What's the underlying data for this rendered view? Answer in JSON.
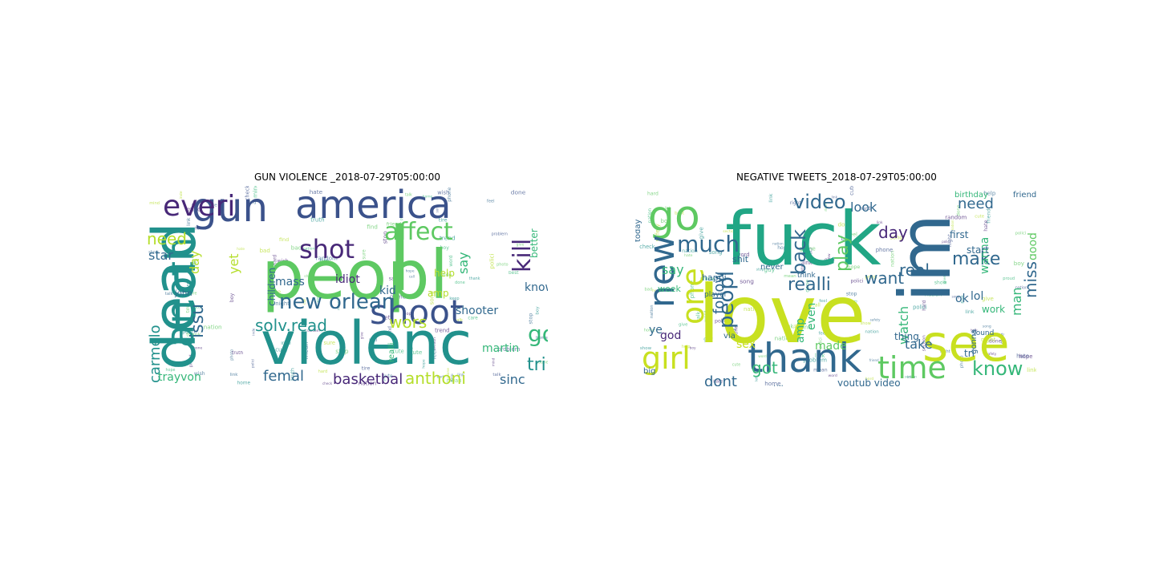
{
  "chart_data": [
    {
      "type": "wordcloud",
      "title": "GUN VIOLENCE _2018-07-29T05:00:00",
      "words": [
        {
          "text": "peopl",
          "weight": 1.0,
          "color": "#5ec962"
        },
        {
          "text": "dead",
          "weight": 0.88,
          "color": "#21918c"
        },
        {
          "text": "violenc",
          "weight": 0.86,
          "color": "#21918c"
        },
        {
          "text": "gun",
          "weight": 0.7,
          "color": "#3b528b"
        },
        {
          "text": "america",
          "weight": 0.66,
          "color": "#3b528b"
        },
        {
          "text": "anoth",
          "weight": 0.62,
          "color": "#21918c"
        },
        {
          "text": "l",
          "weight": 0.9,
          "color": "#5ec962"
        },
        {
          "text": "shoot",
          "weight": 0.55,
          "color": "#3b528b"
        },
        {
          "text": "everi",
          "weight": 0.5,
          "color": "#482878"
        },
        {
          "text": "shot",
          "weight": 0.42,
          "color": "#482878"
        },
        {
          "text": "affect",
          "weight": 0.4,
          "color": "#5ec962"
        },
        {
          "text": "kill",
          "weight": 0.38,
          "color": "#482878"
        },
        {
          "text": "new orlean",
          "weight": 0.35,
          "color": "#31688e"
        },
        {
          "text": "need",
          "weight": 0.28,
          "color": "#b5de2b"
        },
        {
          "text": "issu",
          "weight": 0.26,
          "color": "#31688e"
        },
        {
          "text": "solv.read",
          "weight": 0.26,
          "color": "#21918c"
        },
        {
          "text": "wors",
          "weight": 0.25,
          "color": "#b5de2b"
        },
        {
          "text": "go",
          "weight": 0.32,
          "color": "#35b779"
        },
        {
          "text": "carmelo",
          "weight": 0.22,
          "color": "#21918c"
        },
        {
          "text": "femal",
          "weight": 0.22,
          "color": "#31688e"
        },
        {
          "text": "basketbal",
          "weight": 0.2,
          "color": "#482878"
        },
        {
          "text": "anthoni",
          "weight": 0.2,
          "color": "#b5de2b"
        },
        {
          "text": "tri",
          "weight": 0.24,
          "color": "#21918c"
        },
        {
          "text": "sinc",
          "weight": 0.19,
          "color": "#31688e"
        },
        {
          "text": "star",
          "weight": 0.18,
          "color": "#31688e"
        },
        {
          "text": "day",
          "weight": 0.18,
          "color": "#b5de2b"
        },
        {
          "text": "yet",
          "weight": 0.17,
          "color": "#b5de2b"
        },
        {
          "text": "say",
          "weight": 0.17,
          "color": "#35b779"
        },
        {
          "text": "trayvon",
          "weight": 0.16,
          "color": "#35b779"
        },
        {
          "text": "martin",
          "weight": 0.16,
          "color": "#35b779"
        },
        {
          "text": "children",
          "weight": 0.14,
          "color": "#31688e"
        },
        {
          "text": "mass",
          "weight": 0.13,
          "color": "#31688e"
        },
        {
          "text": "idiot",
          "weight": 0.13,
          "color": "#482878"
        },
        {
          "text": "kid",
          "weight": 0.13,
          "color": "#31688e"
        },
        {
          "text": "shooter",
          "weight": 0.13,
          "color": "#31688e"
        },
        {
          "text": "know",
          "weight": 0.13,
          "color": "#31688e"
        },
        {
          "text": "better",
          "weight": 0.12,
          "color": "#35b779"
        },
        {
          "text": "amp",
          "weight": 0.12,
          "color": "#b5de2b"
        },
        {
          "text": "help",
          "weight": 0.11,
          "color": "#b5de2b"
        },
        {
          "text": "john",
          "weight": 0.09,
          "color": "#31688e"
        },
        {
          "text": "realli",
          "weight": 0.09,
          "color": "#35b779"
        },
        {
          "text": "felixfortinbra",
          "weight": 0.08,
          "color": "#31688e"
        },
        {
          "text": "american",
          "weight": 0.08,
          "color": "#31688e"
        }
      ]
    },
    {
      "type": "wordcloud",
      "title": "NEGATIVE TWEETS_2018-07-29T05:00:00",
      "words": [
        {
          "text": "love",
          "weight": 1.0,
          "color": "#c8e020"
        },
        {
          "text": "fuck",
          "weight": 0.88,
          "color": "#21a685"
        },
        {
          "text": "im",
          "weight": 0.84,
          "color": "#31688e"
        },
        {
          "text": "see",
          "weight": 0.62,
          "color": "#c8e020"
        },
        {
          "text": "thank",
          "weight": 0.52,
          "color": "#31688e"
        },
        {
          "text": "go",
          "weight": 0.5,
          "color": "#5ec962"
        },
        {
          "text": "new",
          "weight": 0.48,
          "color": "#31688e"
        },
        {
          "text": "one",
          "weight": 0.42,
          "color": "#c8e020"
        },
        {
          "text": "time",
          "weight": 0.4,
          "color": "#5ec962"
        },
        {
          "text": "girl",
          "weight": 0.38,
          "color": "#c8e020"
        },
        {
          "text": "peopl",
          "weight": 0.3,
          "color": "#31688e"
        },
        {
          "text": "much",
          "weight": 0.3,
          "color": "#31688e"
        },
        {
          "text": "video",
          "weight": 0.28,
          "color": "#31688e"
        },
        {
          "text": "know",
          "weight": 0.28,
          "color": "#35b779"
        },
        {
          "text": "back",
          "weight": 0.24,
          "color": "#31688e"
        },
        {
          "text": "play",
          "weight": 0.24,
          "color": "#5ec962"
        },
        {
          "text": "realli",
          "weight": 0.22,
          "color": "#31688e"
        },
        {
          "text": "want",
          "weight": 0.22,
          "color": "#31688e"
        },
        {
          "text": "real",
          "weight": 0.22,
          "color": "#31688e"
        },
        {
          "text": "make",
          "weight": 0.22,
          "color": "#31688e"
        },
        {
          "text": "miss",
          "weight": 0.22,
          "color": "#31688e"
        },
        {
          "text": "day",
          "weight": 0.22,
          "color": "#482878"
        },
        {
          "text": "follow",
          "weight": 0.2,
          "color": "#31688e"
        },
        {
          "text": "got",
          "weight": 0.2,
          "color": "#35b779"
        },
        {
          "text": "dont",
          "weight": 0.18,
          "color": "#31688e"
        },
        {
          "text": "need",
          "weight": 0.18,
          "color": "#31688e"
        },
        {
          "text": "look",
          "weight": 0.16,
          "color": "#31688e"
        },
        {
          "text": "man",
          "weight": 0.16,
          "color": "#35b779"
        },
        {
          "text": "say",
          "weight": 0.16,
          "color": "#35b779"
        },
        {
          "text": "watch",
          "weight": 0.15,
          "color": "#35b779"
        },
        {
          "text": "take",
          "weight": 0.15,
          "color": "#31688e"
        },
        {
          "text": "god",
          "weight": 0.15,
          "color": "#482878"
        },
        {
          "text": "good",
          "weight": 0.14,
          "color": "#5ec962"
        },
        {
          "text": "made",
          "weight": 0.14,
          "color": "#5ec962"
        },
        {
          "text": "amp",
          "weight": 0.14,
          "color": "#35b779"
        },
        {
          "text": "lol",
          "weight": 0.14,
          "color": "#31688e"
        },
        {
          "text": "wanna",
          "weight": 0.13,
          "color": "#35b779"
        },
        {
          "text": "even",
          "weight": 0.13,
          "color": "#35b779"
        },
        {
          "text": "sex",
          "weight": 0.12,
          "color": "#c8e020"
        },
        {
          "text": "ye",
          "weight": 0.12,
          "color": "#31688e"
        },
        {
          "text": "ok",
          "weight": 0.12,
          "color": "#31688e"
        },
        {
          "text": "youtub video",
          "weight": 0.1,
          "color": "#31688e"
        },
        {
          "text": "work",
          "weight": 0.1,
          "color": "#35b779"
        },
        {
          "text": "tri",
          "weight": 0.1,
          "color": "#31688e"
        },
        {
          "text": "first",
          "weight": 0.09,
          "color": "#31688e"
        },
        {
          "text": "start",
          "weight": 0.09,
          "color": "#31688e"
        },
        {
          "text": "shit",
          "weight": 0.09,
          "color": "#31688e"
        },
        {
          "text": "happi",
          "weight": 0.09,
          "color": "#31688e"
        },
        {
          "text": "week",
          "weight": 0.09,
          "color": "#35b779"
        },
        {
          "text": "today",
          "weight": 0.08,
          "color": "#31688e"
        },
        {
          "text": "thing",
          "weight": 0.09,
          "color": "#31688e"
        },
        {
          "text": "gonna",
          "weight": 0.08,
          "color": "#31688e"
        },
        {
          "text": "birthday",
          "weight": 0.07,
          "color": "#35b779"
        },
        {
          "text": "friend",
          "weight": 0.07,
          "color": "#31688e"
        },
        {
          "text": "never",
          "weight": 0.07,
          "color": "#31688e"
        },
        {
          "text": "player",
          "weight": 0.06,
          "color": "#31688e"
        },
        {
          "text": "via",
          "weight": 0.07,
          "color": "#31688e"
        },
        {
          "text": "big",
          "weight": 0.08,
          "color": "#31688e"
        },
        {
          "text": "still",
          "weight": 0.07,
          "color": "#31688e"
        },
        {
          "text": "music",
          "weight": 0.06,
          "color": "#31688e"
        },
        {
          "text": "pleas",
          "weight": 0.06,
          "color": "#31688e"
        },
        {
          "text": "movi",
          "weight": 0.06,
          "color": "#31688e"
        },
        {
          "text": "life",
          "weight": 0.06,
          "color": "#31688e"
        },
        {
          "text": "sound",
          "weight": 0.06,
          "color": "#31688e"
        },
        {
          "text": "think",
          "weight": 0.06,
          "color": "#31688e"
        }
      ]
    }
  ]
}
